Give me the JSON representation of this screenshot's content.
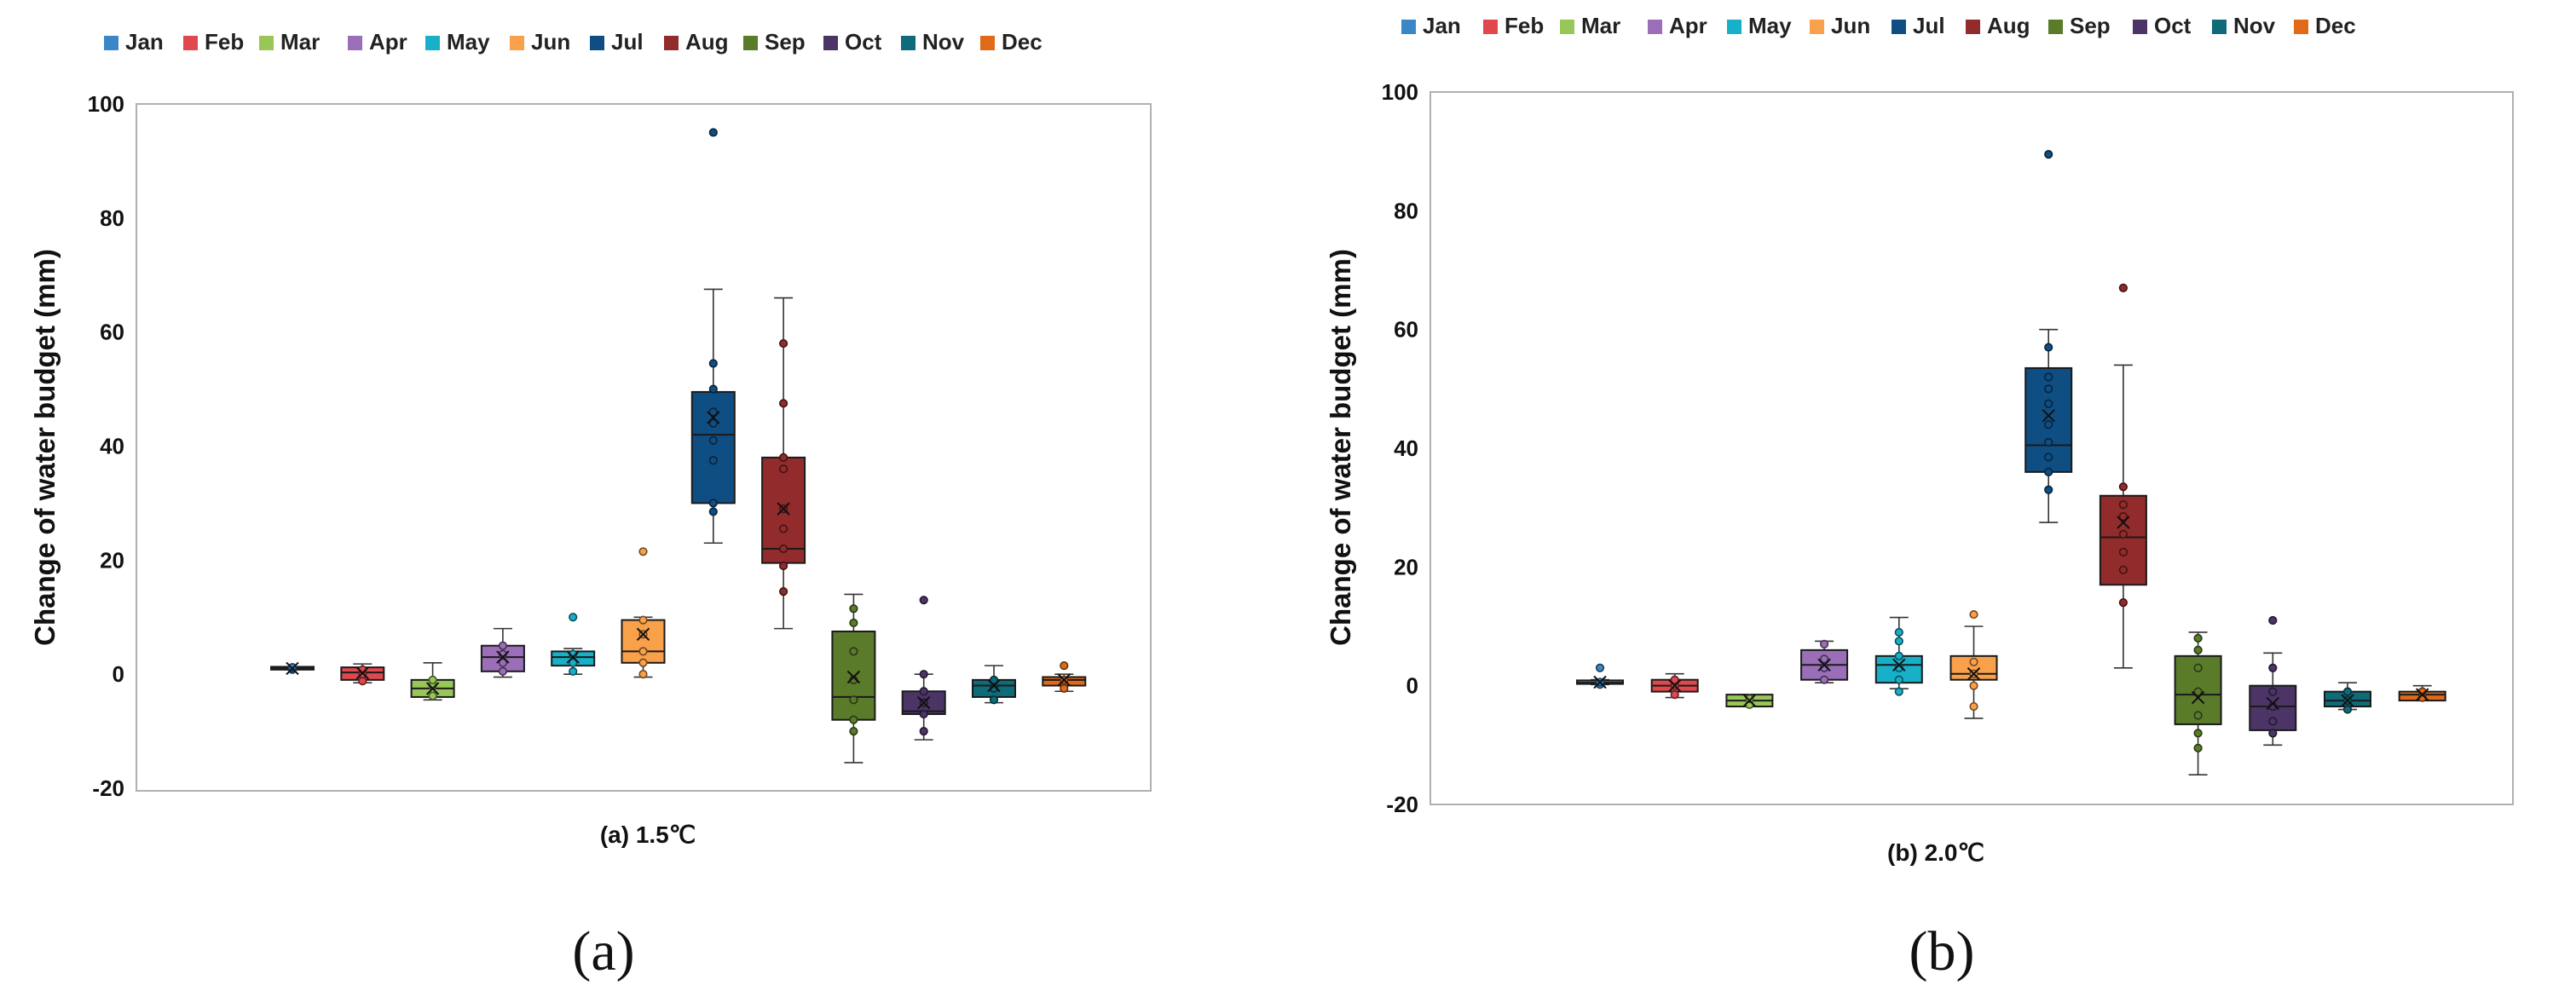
{
  "legend": [
    "Jan",
    "Feb",
    "Mar",
    "Apr",
    "May",
    "Jun",
    "Jul",
    "Aug",
    "Sep",
    "Oct",
    "Nov",
    "Dec"
  ],
  "colors": [
    "#3a87c8",
    "#e0484e",
    "#98c657",
    "#9a6fb8",
    "#18b0c8",
    "#f9a04a",
    "#0f4e82",
    "#922b2b",
    "#5a7b2a",
    "#4c3566",
    "#0e6b7a",
    "#e06a1a"
  ],
  "chart_data": [
    {
      "type": "boxplot",
      "title": "",
      "caption": "(a) 1.5℃",
      "panel_label": "(a)",
      "ylabel": "Change of water budget (mm)",
      "xlabel": "",
      "ylim": [
        -20,
        100
      ],
      "yticks": [
        -20,
        0,
        20,
        40,
        60,
        80,
        100
      ],
      "categories": [
        "Jan",
        "Feb",
        "Mar",
        "Apr",
        "May",
        "Jun",
        "Jul",
        "Aug",
        "Sep",
        "Oct",
        "Nov",
        "Dec"
      ],
      "boxes": [
        {
          "name": "Jan",
          "whisker_low": 0.8,
          "q1": 0.8,
          "median": 1.0,
          "q3": 1.3,
          "whisker_high": 1.3,
          "mean": 1.0,
          "points": [
            0.8,
            1.0,
            1.2
          ]
        },
        {
          "name": "Feb",
          "whisker_low": -1.5,
          "q1": -1.0,
          "median": 0.3,
          "q3": 1.2,
          "whisker_high": 1.8,
          "mean": 0.2,
          "points": [
            -1.2,
            0.0,
            0.8
          ]
        },
        {
          "name": "Mar",
          "whisker_low": -4.5,
          "q1": -4.0,
          "median": -2.5,
          "q3": -1.0,
          "whisker_high": 2.0,
          "mean": -2.5,
          "points": [
            -3.8,
            -2.0,
            -1.0
          ]
        },
        {
          "name": "Apr",
          "whisker_low": -0.5,
          "q1": 0.5,
          "median": 3.0,
          "q3": 5.0,
          "whisker_high": 8.0,
          "mean": 3.0,
          "points": [
            0.5,
            2.0,
            3.5,
            5.0
          ]
        },
        {
          "name": "May",
          "whisker_low": 0.0,
          "q1": 1.5,
          "median": 3.0,
          "q3": 4.0,
          "whisker_high": 4.5,
          "mean": 3.0,
          "points": [
            0.5,
            2.0,
            3.5,
            10.0
          ]
        },
        {
          "name": "Jun",
          "whisker_low": -0.5,
          "q1": 2.0,
          "median": 4.0,
          "q3": 9.5,
          "whisker_high": 10.0,
          "mean": 7.0,
          "points": [
            0.0,
            2.0,
            4.0,
            7.0,
            9.5,
            21.5
          ]
        },
        {
          "name": "Jul",
          "whisker_low": 23.0,
          "q1": 30.0,
          "median": 42.0,
          "q3": 49.5,
          "whisker_high": 67.5,
          "mean": 45.0,
          "points": [
            28.5,
            30.0,
            37.5,
            41.0,
            44.0,
            46.0,
            50.0,
            54.5,
            95.0
          ]
        },
        {
          "name": "Aug",
          "whisker_low": 8.0,
          "q1": 19.5,
          "median": 22.0,
          "q3": 38.0,
          "whisker_high": 66.0,
          "mean": 29.0,
          "points": [
            14.5,
            19.0,
            22.0,
            25.5,
            29.0,
            36.0,
            38.0,
            47.5,
            58.0
          ]
        },
        {
          "name": "Sep",
          "whisker_low": -15.5,
          "q1": -8.0,
          "median": -4.0,
          "q3": 7.5,
          "whisker_high": 14.0,
          "mean": -0.5,
          "points": [
            -10.0,
            -8.0,
            -4.5,
            -1.0,
            4.0,
            9.0,
            11.5
          ]
        },
        {
          "name": "Oct",
          "whisker_low": -11.5,
          "q1": -7.0,
          "median": -6.5,
          "q3": -3.0,
          "whisker_high": 0.0,
          "mean": -5.0,
          "points": [
            -10.0,
            -7.0,
            -5.0,
            -3.0,
            0.0,
            13.0
          ]
        },
        {
          "name": "Nov",
          "whisker_low": -5.0,
          "q1": -4.0,
          "median": -2.0,
          "q3": -1.0,
          "whisker_high": 1.5,
          "mean": -2.0,
          "points": [
            -4.5,
            -2.5,
            -1.0
          ]
        },
        {
          "name": "Dec",
          "whisker_low": -3.0,
          "q1": -2.0,
          "median": -1.0,
          "q3": -0.5,
          "whisker_high": 0.0,
          "mean": -1.0,
          "points": [
            -2.5,
            -1.0,
            1.5
          ]
        }
      ]
    },
    {
      "type": "boxplot",
      "title": "",
      "caption": "(b) 2.0℃",
      "panel_label": "(b)",
      "ylabel": "Change of water budget (mm)",
      "xlabel": "",
      "ylim": [
        -20,
        100
      ],
      "yticks": [
        -20,
        0,
        20,
        40,
        60,
        80,
        100
      ],
      "categories": [
        "Jan",
        "Feb",
        "Mar",
        "Apr",
        "May",
        "Jun",
        "Jul",
        "Aug",
        "Sep",
        "Oct",
        "Nov",
        "Dec"
      ],
      "boxes": [
        {
          "name": "Jan",
          "whisker_low": 0.2,
          "q1": 0.3,
          "median": 0.5,
          "q3": 0.9,
          "whisker_high": 1.0,
          "mean": 0.6,
          "points": [
            0.2,
            0.6,
            3.0
          ]
        },
        {
          "name": "Feb",
          "whisker_low": -2.0,
          "q1": -1.0,
          "median": 0.0,
          "q3": 1.0,
          "whisker_high": 2.0,
          "mean": 0.0,
          "points": [
            -1.5,
            0.0,
            1.0
          ]
        },
        {
          "name": "Mar",
          "whisker_low": -3.5,
          "q1": -3.5,
          "median": -2.5,
          "q3": -1.5,
          "whisker_high": -1.5,
          "mean": -2.5,
          "points": [
            -3.2,
            -2.2
          ]
        },
        {
          "name": "Apr",
          "whisker_low": 0.5,
          "q1": 1.0,
          "median": 3.5,
          "q3": 6.0,
          "whisker_high": 7.5,
          "mean": 3.5,
          "points": [
            1.0,
            3.0,
            4.5,
            7.0
          ]
        },
        {
          "name": "May",
          "whisker_low": -0.5,
          "q1": 0.5,
          "median": 3.5,
          "q3": 5.0,
          "whisker_high": 11.5,
          "mean": 3.5,
          "points": [
            -1.0,
            1.0,
            3.0,
            5.0,
            7.5,
            9.0
          ]
        },
        {
          "name": "Jun",
          "whisker_low": -5.5,
          "q1": 1.0,
          "median": 2.0,
          "q3": 5.0,
          "whisker_high": 10.0,
          "mean": 2.0,
          "points": [
            -3.5,
            0.0,
            2.0,
            4.0,
            12.0
          ]
        },
        {
          "name": "Jul",
          "whisker_low": 27.5,
          "q1": 36.0,
          "median": 40.5,
          "q3": 53.5,
          "whisker_high": 60.0,
          "mean": 45.5,
          "points": [
            33.0,
            36.0,
            38.5,
            41.0,
            44.0,
            47.5,
            50.0,
            52.0,
            57.0,
            89.5
          ]
        },
        {
          "name": "Aug",
          "whisker_low": 3.0,
          "q1": 17.0,
          "median": 25.0,
          "q3": 32.0,
          "whisker_high": 54.0,
          "mean": 27.5,
          "points": [
            14.0,
            19.5,
            22.5,
            25.5,
            28.5,
            30.5,
            33.5,
            67.0
          ]
        },
        {
          "name": "Sep",
          "whisker_low": -15.0,
          "q1": -6.5,
          "median": -1.5,
          "q3": 5.0,
          "whisker_high": 9.0,
          "mean": -2.0,
          "points": [
            -10.5,
            -8.0,
            -5.0,
            -1.0,
            3.0,
            6.0,
            8.0
          ]
        },
        {
          "name": "Oct",
          "whisker_low": -10.0,
          "q1": -7.5,
          "median": -3.5,
          "q3": 0.0,
          "whisker_high": 5.5,
          "mean": -3.0,
          "points": [
            -8.0,
            -6.0,
            -3.5,
            -1.0,
            3.0,
            11.0
          ]
        },
        {
          "name": "Nov",
          "whisker_low": -4.0,
          "q1": -3.5,
          "median": -2.5,
          "q3": -1.0,
          "whisker_high": 0.5,
          "mean": -2.5,
          "points": [
            -4.0,
            -2.5,
            -1.0
          ]
        },
        {
          "name": "Dec",
          "whisker_low": -2.5,
          "q1": -2.5,
          "median": -1.5,
          "q3": -1.0,
          "whisker_high": 0.0,
          "mean": -1.5,
          "points": [
            -2.0,
            -1.0
          ]
        }
      ]
    }
  ]
}
